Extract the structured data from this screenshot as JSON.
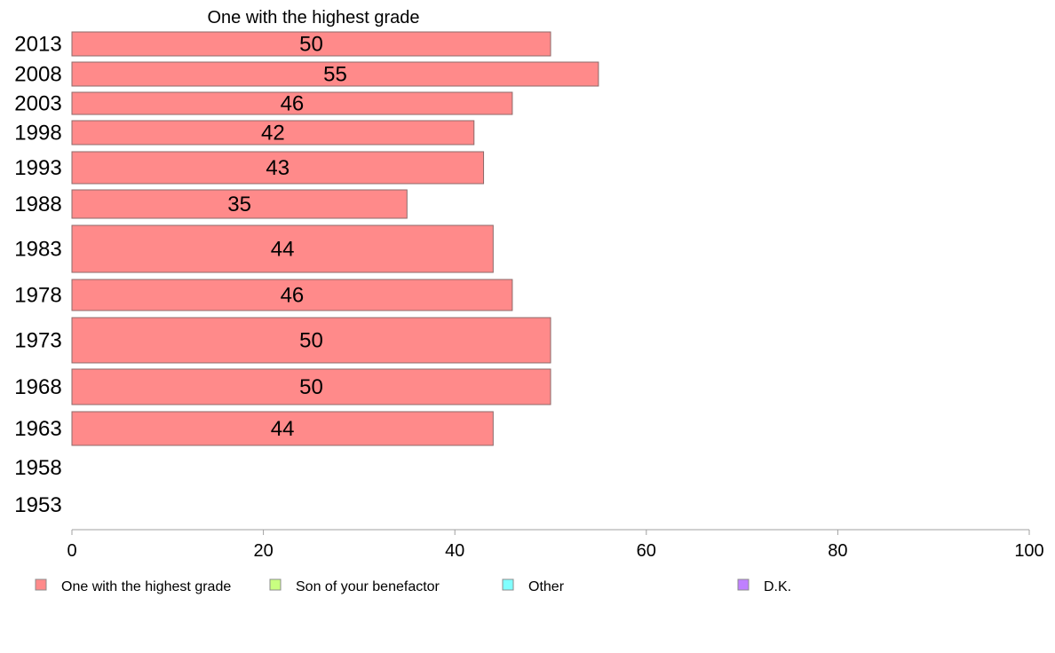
{
  "chart_data": {
    "type": "bar",
    "orientation": "horizontal",
    "title": "One with the highest grade",
    "categories": [
      "2013",
      "2008",
      "2003",
      "1998",
      "1993",
      "1988",
      "1983",
      "1978",
      "1973",
      "1968",
      "1963",
      "1958",
      "1953"
    ],
    "series": [
      {
        "name": "One with the highest grade",
        "color": "#ff8a8a",
        "values": [
          50,
          55,
          46,
          42,
          43,
          35,
          44,
          46,
          50,
          50,
          44,
          null,
          null
        ],
        "labels": [
          "50",
          "55",
          "46",
          "42",
          "43",
          "35",
          "44",
          "46",
          "50",
          "50",
          "44",
          "",
          ""
        ]
      }
    ],
    "legend": [
      {
        "name": "One with the highest grade",
        "color": "#ff8a8a"
      },
      {
        "name": "Son of your benefactor",
        "color": "#c8ff80"
      },
      {
        "name": "Other",
        "color": "#80ffff"
      },
      {
        "name": "D.K.",
        "color": "#bf80ff"
      }
    ],
    "xlim": [
      0,
      100
    ],
    "xticks": [
      "0",
      "20",
      "40",
      "60",
      "80",
      "100"
    ],
    "legend_position": "bottom",
    "grid": false
  }
}
